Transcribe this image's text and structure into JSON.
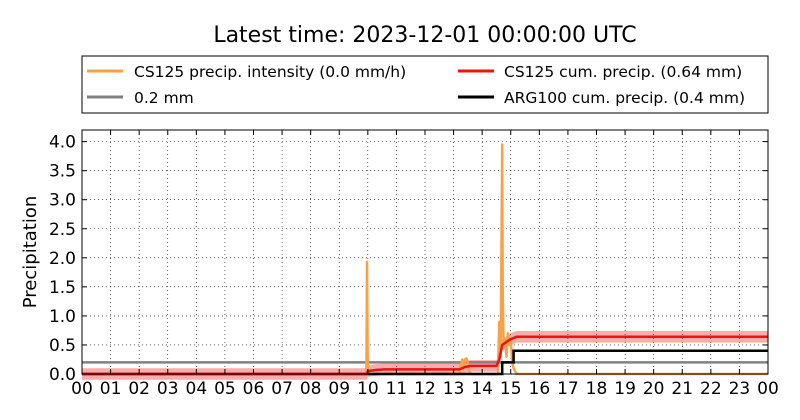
{
  "chart_data": {
    "type": "line",
    "title": "Latest time: 2023-12-01 00:00:00 UTC",
    "xlabel": "",
    "ylabel": "Precipitation",
    "xlim": [
      0,
      24
    ],
    "ylim": [
      0,
      4.2
    ],
    "x_tick_labels": [
      "00",
      "01",
      "02",
      "03",
      "04",
      "05",
      "06",
      "07",
      "08",
      "09",
      "10",
      "11",
      "12",
      "13",
      "14",
      "15",
      "16",
      "17",
      "18",
      "19",
      "20",
      "21",
      "22",
      "23",
      "00"
    ],
    "y_ticks": [
      0.0,
      0.5,
      1.0,
      1.5,
      2.0,
      2.5,
      3.0,
      3.5,
      4.0
    ],
    "y_tick_labels": [
      "0.0",
      "0.5",
      "1.0",
      "1.5",
      "2.0",
      "2.5",
      "3.0",
      "3.5",
      "4.0"
    ],
    "grid": true,
    "legend_placement": "top, above plot, two columns",
    "series": [
      {
        "name": "CS125 precip. intensity (0.0 mm/h)",
        "color": "#f5a24a",
        "x": [
          0,
          9.95,
          9.97,
          10.0,
          10.02,
          10.05,
          13.2,
          13.25,
          13.3,
          13.35,
          13.4,
          13.45,
          13.5,
          13.55,
          13.6,
          14.55,
          14.6,
          14.65,
          14.7,
          14.72,
          14.75,
          14.8,
          14.85,
          14.9,
          14.95,
          15.0,
          15.05,
          15.1,
          15.2,
          24
        ],
        "y": [
          0,
          0,
          1.93,
          0.05,
          0,
          0,
          0,
          0.15,
          0.25,
          0.1,
          0.25,
          0.27,
          0.2,
          0.05,
          0,
          0,
          0.9,
          0.3,
          3.95,
          1.5,
          0.5,
          0.6,
          0.3,
          0.7,
          0.5,
          0.6,
          0.2,
          0.1,
          0,
          0
        ]
      },
      {
        "name": "0.2 mm",
        "color": "#808080",
        "x": [
          0,
          24
        ],
        "y": [
          0.2,
          0.2
        ]
      },
      {
        "name": "CS125 cum. precip. (0.64 mm)",
        "color": "#ee1111",
        "x": [
          0,
          9.97,
          10.0,
          10.3,
          10.6,
          13.2,
          13.4,
          13.6,
          14.5,
          14.6,
          14.7,
          14.9,
          15.0,
          15.2,
          24
        ],
        "y": [
          0,
          0,
          0.05,
          0.07,
          0.08,
          0.08,
          0.12,
          0.14,
          0.14,
          0.25,
          0.5,
          0.57,
          0.6,
          0.64,
          0.64
        ],
        "band_offset": 0.1
      },
      {
        "name": "ARG100 cum. precip. (0.4 mm)",
        "color": "#000000",
        "x": [
          0,
          14.7,
          14.7,
          15.1,
          15.1,
          24
        ],
        "y": [
          0,
          0,
          0.2,
          0.2,
          0.4,
          0.4
        ]
      }
    ]
  }
}
